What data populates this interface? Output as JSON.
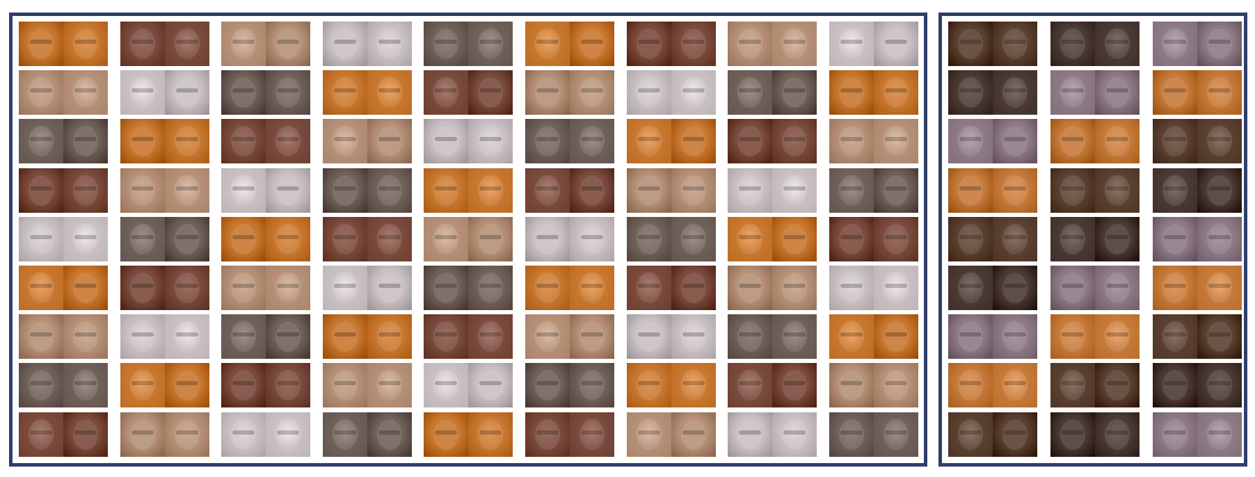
{
  "panels": [
    {
      "name": "left-panel",
      "columns": 9,
      "rows": 9,
      "palette": [
        "#c8772f",
        "#8a5a3a",
        "#b59077",
        "#5b4032",
        "#6f6159",
        "#b59aa0",
        "#7a4a3c",
        "#3e3a40",
        "#c9c0c4",
        "#9a8278"
      ]
    },
    {
      "name": "right-panel",
      "columns": 3,
      "rows": 9,
      "palette": [
        "#5a4030",
        "#6b5a52",
        "#c67a3a",
        "#b77a55",
        "#8d7a86",
        "#b09aa8",
        "#4b3a34",
        "#a58a92"
      ]
    }
  ]
}
